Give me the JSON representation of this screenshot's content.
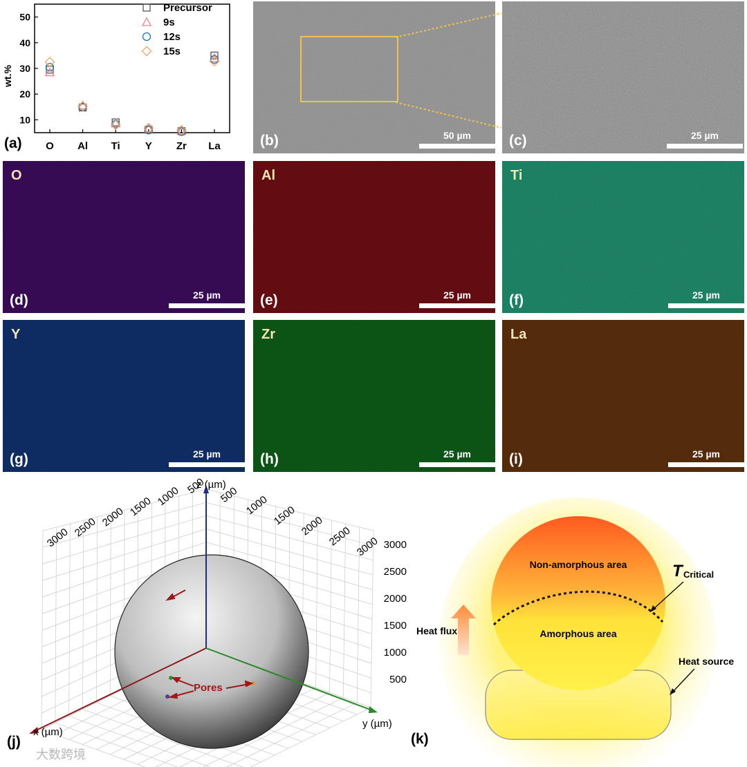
{
  "chart_data": {
    "type": "scatter",
    "panel_label": "(a)",
    "ylabel": "wt.%",
    "xlabel": "",
    "ylim": [
      5,
      55
    ],
    "yticks": [
      10,
      20,
      30,
      40,
      50
    ],
    "categories": [
      "O",
      "Al",
      "Ti",
      "Y",
      "Zr",
      "La"
    ],
    "series": [
      {
        "name": "Precursor",
        "marker": "square",
        "color": "#555555",
        "values": [
          29.5,
          14.8,
          9.0,
          6.2,
          5.6,
          35.0
        ]
      },
      {
        "name": "9s",
        "marker": "triangle",
        "color": "#f08080",
        "values": [
          28.5,
          15.6,
          8.6,
          6.6,
          5.7,
          34.0
        ]
      },
      {
        "name": "12s",
        "marker": "circle",
        "color": "#1f77b4",
        "values": [
          30.5,
          15.0,
          8.3,
          6.0,
          5.4,
          33.5
        ]
      },
      {
        "name": "15s",
        "marker": "diamond",
        "color": "#f4a460",
        "values": [
          32.5,
          15.3,
          8.0,
          6.8,
          6.0,
          32.8
        ]
      }
    ]
  },
  "panels": {
    "b": {
      "label": "(b)",
      "scale": "50 µm"
    },
    "c": {
      "label": "(c)",
      "scale": "25 µm"
    },
    "d": {
      "label": "(d)",
      "element": "O",
      "scale": "25 µm",
      "color": "#3a0b5a"
    },
    "e": {
      "label": "(e)",
      "element": "Al",
      "scale": "25 µm",
      "color": "#6a0d12"
    },
    "f": {
      "label": "(f)",
      "element": "Ti",
      "scale": "25 µm",
      "color": "#1f8a6a"
    },
    "g": {
      "label": "(g)",
      "element": "Y",
      "scale": "25 µm",
      "color": "#0f2f6a"
    },
    "h": {
      "label": "(h)",
      "element": "Zr",
      "scale": "25 µm",
      "color": "#0d5a18"
    },
    "i": {
      "label": "(i)",
      "element": "La",
      "scale": "25 µm",
      "color": "#5a2e0c"
    }
  },
  "panel_j": {
    "label": "(j)",
    "z_axis": "z (µm)",
    "x_axis": "x (µm)",
    "y_axis": "y (µm)",
    "left_ticks": [
      "3000",
      "2500",
      "2000",
      "1500",
      "1000",
      "500"
    ],
    "right_ticks": [
      "500",
      "1000",
      "1500",
      "2000",
      "2500",
      "3000"
    ],
    "vertical_ticks": [
      "3000",
      "2500",
      "2000",
      "1500",
      "1000",
      "500"
    ],
    "pores_label": "Pores"
  },
  "panel_k": {
    "label": "(k)",
    "non_amorphous": "Non-amorphous area",
    "amorphous": "Amorphous area",
    "t_main": "T",
    "t_sub": "Critical",
    "heat_flux": "Heat flux",
    "heat_source": "Heat source"
  },
  "watermark": "大数跨境"
}
